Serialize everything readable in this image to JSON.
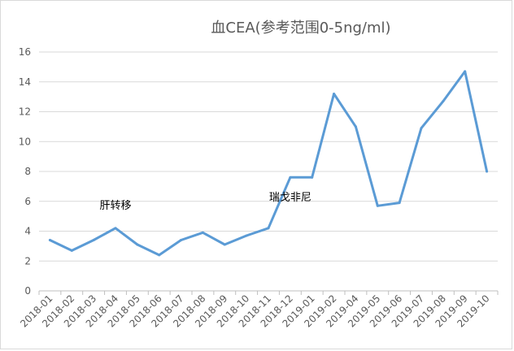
{
  "chart_data": {
    "type": "line",
    "title": "血CEA(参考范围0-5ng/ml)",
    "xlabel": "",
    "ylabel": "",
    "ylim": [
      0,
      16
    ],
    "yticks": [
      0,
      2,
      4,
      6,
      8,
      10,
      12,
      14,
      16
    ],
    "grid": true,
    "categories": [
      "2018-01",
      "2018-02",
      "2018-03",
      "2018-04",
      "2018-05",
      "2018-06",
      "2018-07",
      "2018-08",
      "2018-09",
      "2018-10",
      "2018-11",
      "2018-12",
      "2019-01",
      "2019-02",
      "2019-04",
      "2019-05",
      "2019-06",
      "2019-07",
      "2019-08",
      "2019-09",
      "2019-10"
    ],
    "series": [
      {
        "values": [
          3.4,
          2.7,
          3.4,
          4.2,
          3.1,
          2.4,
          3.4,
          3.9,
          3.1,
          3.7,
          4.2,
          7.6,
          7.6,
          13.2,
          11.0,
          5.7,
          5.9,
          10.9,
          12.7,
          14.7,
          8.0
        ]
      }
    ],
    "annotations": [
      {
        "text": "肝转移",
        "category": "2018-04",
        "y": 5.5
      },
      {
        "text": "瑞戈非尼",
        "category": "2018-12",
        "y": 6.05
      }
    ],
    "colors": {
      "line": "#5b9bd5",
      "grid": "#d9d9d9",
      "axis": "#bfbfbf",
      "text": "#595959"
    }
  }
}
